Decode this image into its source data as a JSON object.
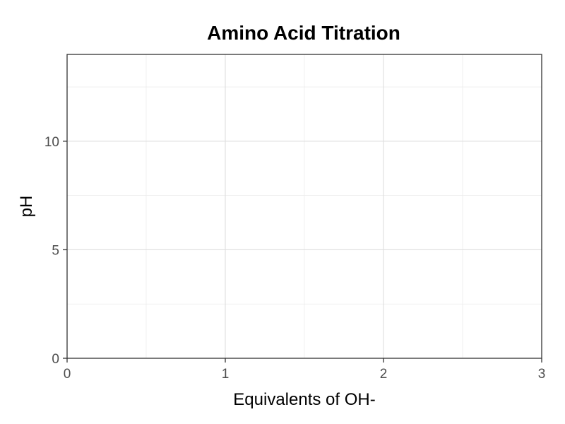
{
  "chart_data": {
    "type": "line",
    "title": "Amino Acid Titration",
    "xlabel": "Equivalents of OH-",
    "ylabel": "pH",
    "xlim": [
      0,
      3
    ],
    "ylim": [
      0,
      14
    ],
    "x_ticks": [
      0,
      1,
      2,
      3
    ],
    "y_ticks": [
      0,
      5,
      10
    ],
    "x_minor": [
      0.5,
      1.5,
      2.5
    ],
    "y_minor": [
      2.5,
      7.5,
      12.5
    ],
    "grid": true,
    "series": []
  }
}
